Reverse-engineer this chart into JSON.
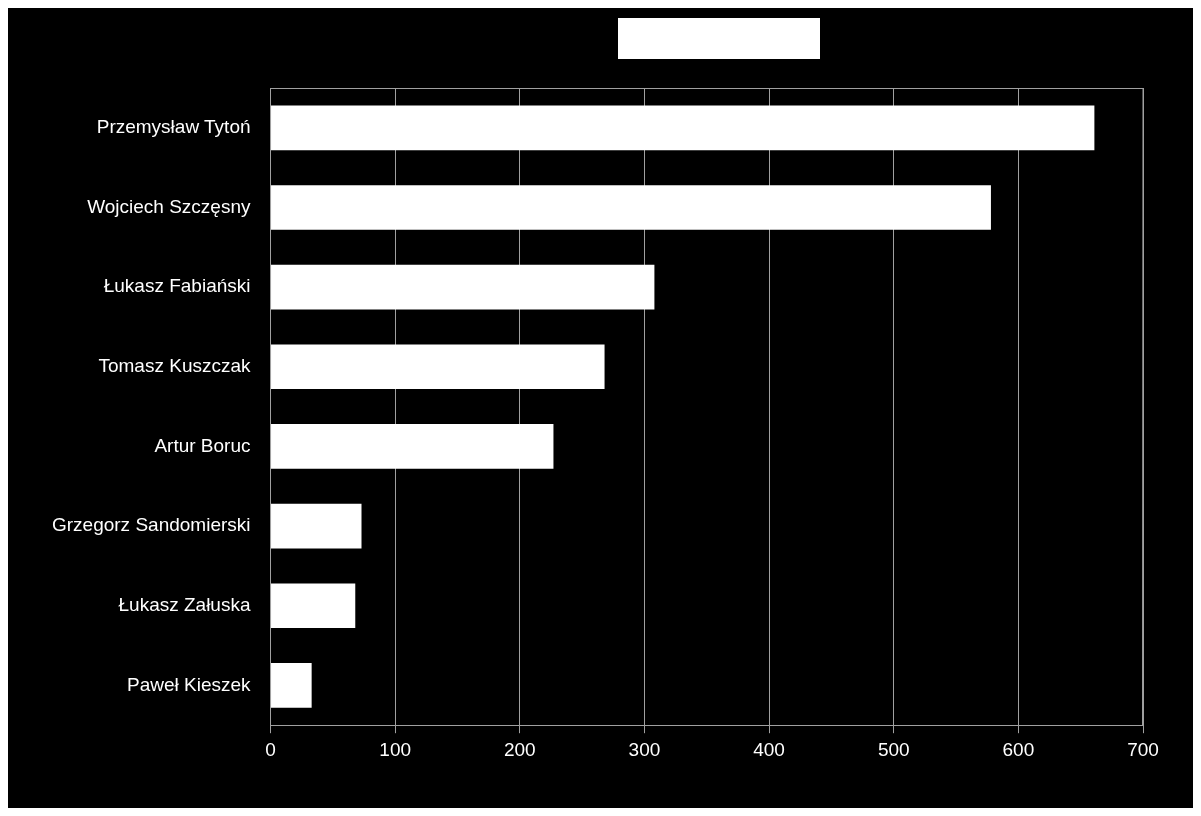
{
  "chart_data": {
    "type": "bar",
    "orientation": "horizontal",
    "categories": [
      "Przemysław Tytoń",
      "Wojciech Szczęsny",
      "Łukasz Fabiański",
      "Tomasz Kuszczak",
      "Artur Boruc",
      "Grzegorz Sandomierski",
      "Łukasz Załuska",
      "Paweł Kieszek"
    ],
    "values": [
      661,
      578,
      308,
      268,
      227,
      73,
      68,
      33
    ],
    "color": "#ffffff",
    "xlim": [
      0,
      700
    ],
    "xticks": [
      0,
      100,
      200,
      300,
      400,
      500,
      600,
      700
    ],
    "grid": "x",
    "legend": false
  }
}
